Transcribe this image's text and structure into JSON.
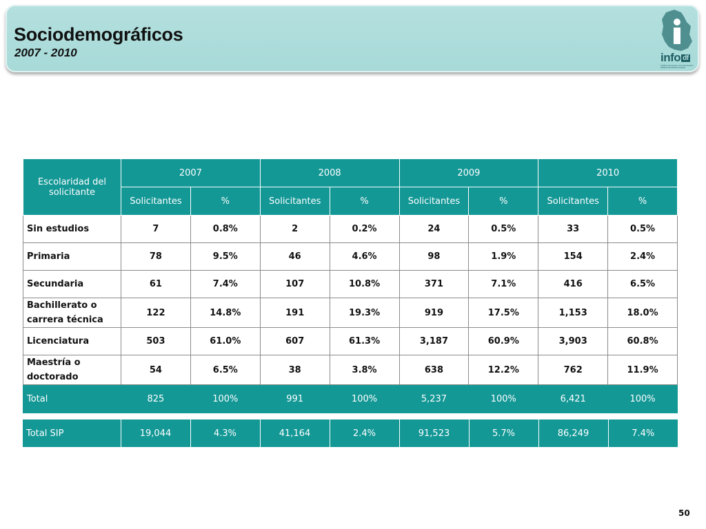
{
  "header": {
    "title": "Sociodemográficos",
    "subtitle": "2007 - 2010",
    "logo_text": "info",
    "logo_suffix": "df",
    "logo_caption": "Instituto de Acceso a la Información Pública del Distrito Federal"
  },
  "table": {
    "corner_header": "Escolaridad del solicitante",
    "years": [
      "2007",
      "2008",
      "2009",
      "2010"
    ],
    "subheaders": [
      "Solicitantes",
      "%",
      "Solicitantes",
      "%",
      "Solicitantes",
      "%",
      "Solicitantes",
      "%"
    ],
    "rows": [
      {
        "label": "Sin estudios",
        "values": [
          "7",
          "0.8%",
          "2",
          "0.2%",
          "24",
          "0.5%",
          "33",
          "0.5%"
        ]
      },
      {
        "label": "Primaria",
        "values": [
          "78",
          "9.5%",
          "46",
          "4.6%",
          "98",
          "1.9%",
          "154",
          "2.4%"
        ]
      },
      {
        "label": "Secundaria",
        "values": [
          "61",
          "7.4%",
          "107",
          "10.8%",
          "371",
          "7.1%",
          "416",
          "6.5%"
        ]
      },
      {
        "label": "Bachillerato o carrera técnica",
        "values": [
          "122",
          "14.8%",
          "191",
          "19.3%",
          "919",
          "17.5%",
          "1,153",
          "18.0%"
        ]
      },
      {
        "label": "Licenciatura",
        "values": [
          "503",
          "61.0%",
          "607",
          "61.3%",
          "3,187",
          "60.9%",
          "3,903",
          "60.8%"
        ]
      },
      {
        "label": "Maestría o doctorado",
        "values": [
          "54",
          "6.5%",
          "38",
          "3.8%",
          "638",
          "12.2%",
          "762",
          "11.9%"
        ]
      }
    ],
    "total": {
      "label": "Total",
      "values": [
        "825",
        "100%",
        "991",
        "100%",
        "5,237",
        "100%",
        "6,421",
        "100%"
      ]
    }
  },
  "sip": {
    "label": "Total SIP",
    "values": [
      "19,044",
      "4.3%",
      "41,164",
      "2.4%",
      "91,523",
      "5.7%",
      "86,249",
      "7.4%"
    ]
  },
  "page_number": "50",
  "colors": {
    "accent": "#139896",
    "header_bg": "#a7dad8",
    "logo": "#1f5e63"
  }
}
